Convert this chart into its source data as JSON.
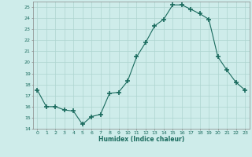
{
  "x": [
    0,
    1,
    2,
    3,
    4,
    5,
    6,
    7,
    8,
    9,
    10,
    11,
    12,
    13,
    14,
    15,
    16,
    17,
    18,
    19,
    20,
    21,
    22,
    23
  ],
  "y": [
    17.5,
    16.0,
    16.0,
    15.7,
    15.6,
    14.4,
    15.1,
    15.3,
    17.2,
    17.3,
    18.3,
    20.5,
    21.8,
    23.3,
    23.9,
    25.2,
    25.2,
    24.8,
    24.4,
    23.9,
    20.5,
    19.3,
    18.2,
    17.5
  ],
  "line_color": "#1a6b5e",
  "marker": "+",
  "marker_size": 4,
  "bg_color": "#ceecea",
  "grid_color": "#aed4d0",
  "xlabel": "Humidex (Indice chaleur)",
  "ylim": [
    14,
    25.5
  ],
  "yticks": [
    14,
    15,
    16,
    17,
    18,
    19,
    20,
    21,
    22,
    23,
    24,
    25
  ],
  "xticks": [
    0,
    1,
    2,
    3,
    4,
    5,
    6,
    7,
    8,
    9,
    10,
    11,
    12,
    13,
    14,
    15,
    16,
    17,
    18,
    19,
    20,
    21,
    22,
    23
  ]
}
